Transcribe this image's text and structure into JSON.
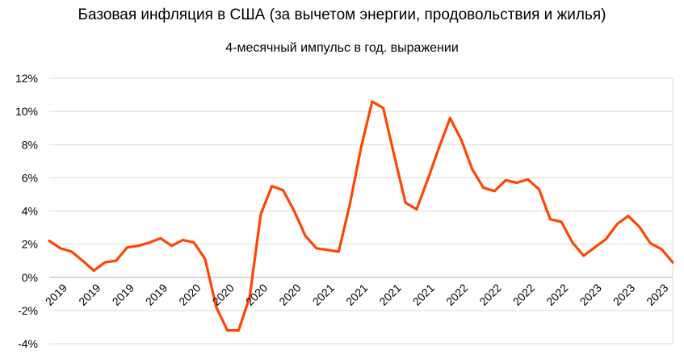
{
  "title": "Базовая инфляция в США (за вычетом энергии, продовольствия и жилья)",
  "subtitle": "4-месячный импульс в год. выражении",
  "colors": {
    "line": "#ff4500",
    "grid": "#d9d9d9",
    "axis": "#bfbfbf"
  },
  "chart_data": {
    "type": "line",
    "title": "Базовая инфляция в США (за вычетом энергии, продовольствия и жилья)",
    "subtitle": "4-месячный импульс в год. выражении",
    "ylim": [
      -4,
      12
    ],
    "yticks": [
      -4,
      -2,
      0,
      2,
      4,
      6,
      8,
      10,
      12
    ],
    "ytick_labels": [
      "-4%",
      "-2%",
      "0%",
      "2%",
      "4%",
      "6%",
      "8%",
      "10%",
      "12%"
    ],
    "grid": true,
    "legend": "none",
    "x_tick_labels": [
      "2019",
      "2019",
      "2019",
      "2019",
      "2020",
      "2020",
      "2020",
      "2020",
      "2021",
      "2021",
      "2021",
      "2021",
      "2022",
      "2022",
      "2022",
      "2022",
      "2023",
      "2023",
      "2023"
    ],
    "series": [
      {
        "values": [
          2.2,
          1.75,
          1.55,
          1.0,
          0.4,
          0.9,
          1.0,
          1.8,
          1.9,
          2.1,
          2.35,
          1.9,
          2.25,
          2.1,
          1.1,
          -1.8,
          -3.2,
          -3.2,
          -1.2,
          3.8,
          5.5,
          5.25,
          4.0,
          2.5,
          1.75,
          1.65,
          1.55,
          4.4,
          7.8,
          10.6,
          10.2,
          7.3,
          4.5,
          4.1,
          5.9,
          7.8,
          9.6,
          8.3,
          6.5,
          5.4,
          5.2,
          5.85,
          5.7,
          5.9,
          5.3,
          3.5,
          3.35,
          2.1,
          1.3,
          1.8,
          2.3,
          3.2,
          3.7,
          3.05,
          2.05,
          1.7,
          0.9
        ]
      }
    ]
  }
}
